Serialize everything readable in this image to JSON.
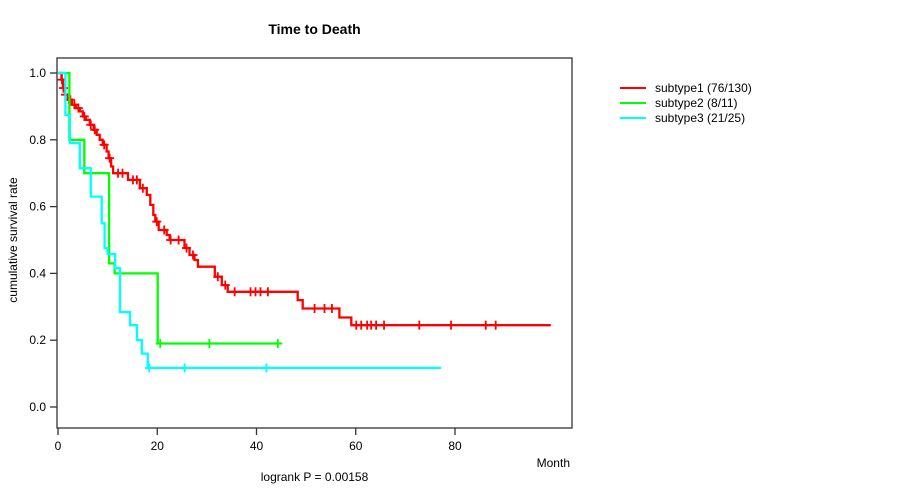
{
  "figure_title": "Time to Death",
  "chart_data": {
    "type": "line",
    "subtype": "kaplan-meier-step-curves",
    "title": "Time to Death",
    "xlabel": "Month",
    "ylabel": "cumulative survival rate",
    "annotation": "logrank P = 0.00158",
    "xlim": [
      0,
      103
    ],
    "ylim": [
      0,
      1.0
    ],
    "x_ticks": [
      0,
      20,
      40,
      60,
      80
    ],
    "y_ticks": [
      0.0,
      0.2,
      0.4,
      0.6,
      0.8,
      1.0
    ],
    "grid": false,
    "legend_position": "right-outside",
    "series": [
      {
        "name": "subtype1 (76/130)",
        "color": "#ff0000",
        "points": [
          [
            0,
            1.0
          ],
          [
            0.7,
            0.98
          ],
          [
            1.0,
            0.955
          ],
          [
            1.4,
            0.935
          ],
          [
            2.0,
            0.92
          ],
          [
            2.8,
            0.905
          ],
          [
            3.6,
            0.895
          ],
          [
            4.4,
            0.885
          ],
          [
            5.0,
            0.87
          ],
          [
            5.6,
            0.86
          ],
          [
            6.4,
            0.845
          ],
          [
            7.2,
            0.83
          ],
          [
            7.8,
            0.815
          ],
          [
            8.4,
            0.8
          ],
          [
            9.0,
            0.785
          ],
          [
            9.8,
            0.765
          ],
          [
            10.2,
            0.745
          ],
          [
            10.7,
            0.72
          ],
          [
            11.1,
            0.7
          ],
          [
            14.1,
            0.68
          ],
          [
            16.5,
            0.655
          ],
          [
            17.9,
            0.635
          ],
          [
            18.6,
            0.605
          ],
          [
            19.2,
            0.575
          ],
          [
            19.6,
            0.555
          ],
          [
            20.3,
            0.53
          ],
          [
            21.9,
            0.515
          ],
          [
            22.5,
            0.5
          ],
          [
            25.5,
            0.476
          ],
          [
            26.5,
            0.455
          ],
          [
            27.5,
            0.44
          ],
          [
            28.2,
            0.42
          ],
          [
            31.6,
            0.39
          ],
          [
            33.0,
            0.365
          ],
          [
            34.2,
            0.345
          ],
          [
            48.3,
            0.32
          ],
          [
            49.3,
            0.295
          ],
          [
            56.7,
            0.268
          ],
          [
            59.1,
            0.245
          ]
        ],
        "censor_months": [
          0.8,
          1.1,
          1.5,
          2.2,
          2.5,
          3.3,
          4.1,
          5.3,
          6.6,
          7.4,
          9.3,
          10.4,
          12.1,
          13.0,
          15.1,
          15.9,
          17.1,
          19.9,
          21.4,
          22.7,
          24.3,
          25.9,
          27.2,
          32.2,
          33.7,
          35.6,
          38.8,
          39.8,
          40.8,
          42.3,
          51.7,
          53.7,
          55.2,
          60.1,
          61.1,
          62.3,
          63.1,
          64.1,
          65.7,
          72.8,
          79.2,
          86.2,
          88.2
        ],
        "end_month": 99.3,
        "final_rate": 0.245
      },
      {
        "name": "subtype2 (8/11)",
        "color": "#00ff00",
        "points": [
          [
            0,
            1.0
          ],
          [
            2.3,
            0.8
          ],
          [
            5.3,
            0.7
          ],
          [
            10.3,
            0.43
          ],
          [
            11.4,
            0.4
          ],
          [
            20.1,
            0.19
          ]
        ],
        "censor_months": [
          20.6,
          30.5,
          44.3
        ],
        "end_month": 45.0,
        "final_rate": 0.19
      },
      {
        "name": "subtype3 (21/25)",
        "color": "#00ffff",
        "points": [
          [
            0,
            1.0
          ],
          [
            1.5,
            0.875
          ],
          [
            2.4,
            0.79
          ],
          [
            4.4,
            0.715
          ],
          [
            6.6,
            0.63
          ],
          [
            8.8,
            0.55
          ],
          [
            9.4,
            0.476
          ],
          [
            10.0,
            0.458
          ],
          [
            11.5,
            0.416
          ],
          [
            12.5,
            0.284
          ],
          [
            14.5,
            0.245
          ],
          [
            15.9,
            0.2
          ],
          [
            16.9,
            0.16
          ],
          [
            18.1,
            0.117
          ]
        ],
        "censor_months": [
          18.4,
          25.5,
          42.0
        ],
        "end_month": 77.2,
        "final_rate": 0.117
      }
    ]
  }
}
